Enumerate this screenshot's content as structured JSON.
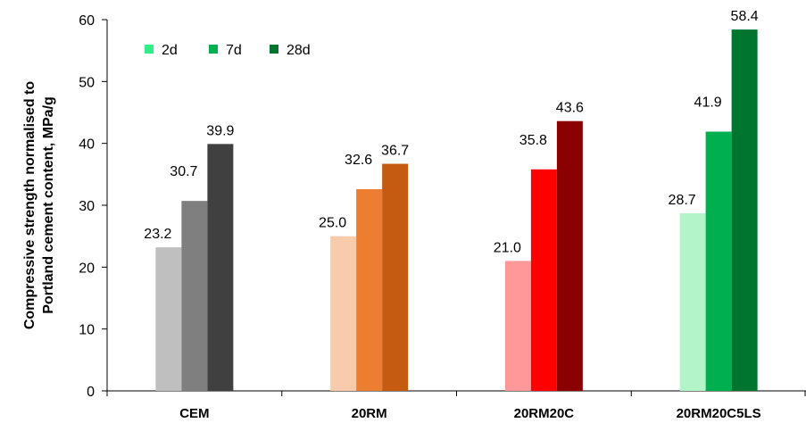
{
  "chart_data": {
    "type": "bar",
    "title": "",
    "ylabel_line1": "Compressive strength normalised to",
    "ylabel_line2": "Portland cement content, MPa/g",
    "xlabel": "",
    "ylim": [
      0,
      60
    ],
    "yticks": [
      0,
      10,
      20,
      30,
      40,
      50,
      60
    ],
    "categories": [
      "CEM",
      "20RM",
      "20RM20C",
      "20RM20C5LS"
    ],
    "series": [
      {
        "name": "2d",
        "values": [
          23.2,
          25.0,
          21.0,
          28.7
        ]
      },
      {
        "name": "7d",
        "values": [
          30.7,
          32.6,
          35.8,
          41.9
        ]
      },
      {
        "name": "28d",
        "values": [
          39.9,
          36.7,
          43.6,
          58.4
        ]
      }
    ],
    "bar_colors": [
      [
        "#bfbfbf",
        "#7f7f7f",
        "#404040"
      ],
      [
        "#f8cbad",
        "#ed7d31",
        "#c55a11"
      ],
      [
        "#ff9999",
        "#ff0000",
        "#8b0000"
      ],
      [
        "#b3f5c9",
        "#00b050",
        "#00752f"
      ]
    ],
    "legend_colors": [
      "#33ee88",
      "#00b050",
      "#00752f"
    ],
    "legend_position": "top-left",
    "data_labels": [
      [
        "23.2",
        "30.7",
        "39.9"
      ],
      [
        "25.0",
        "32.6",
        "36.7"
      ],
      [
        "21.0",
        "35.8",
        "43.6"
      ],
      [
        "28.7",
        "41.9",
        "58.4"
      ]
    ],
    "grid": false
  }
}
